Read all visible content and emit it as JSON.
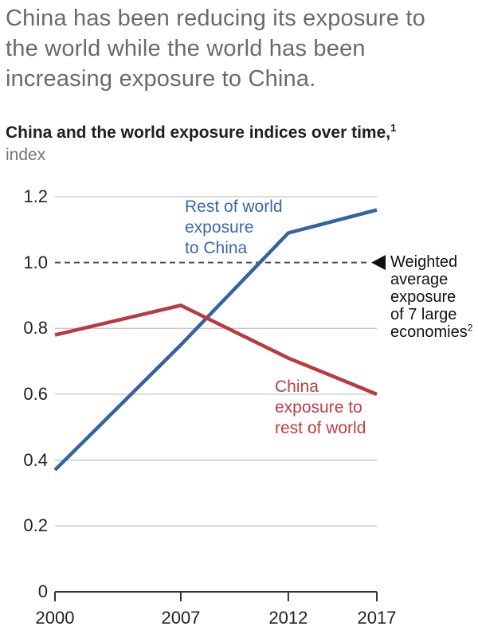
{
  "page_title": {
    "lines": [
      "China has been reducing its exposure to",
      "the world while the world has been",
      "increasing exposure to China."
    ]
  },
  "chart": {
    "title": "China and the world exposure indices over time,",
    "title_footnote": "1",
    "unit": "index"
  },
  "annotations": {
    "rest_of_world": {
      "lines": [
        "Rest of world",
        "exposure",
        "to China"
      ]
    },
    "china_exposure": {
      "lines": [
        "China",
        "exposure to",
        "rest of world"
      ]
    },
    "weighted_avg": {
      "lines": [
        "Weighted",
        "average",
        "exposure",
        "of 7 large",
        "economies"
      ],
      "footnote": "2"
    }
  },
  "colors": {
    "blue_line": "#35639F",
    "red_line": "#B83B40",
    "blue_text": "#3A68A8",
    "red_text": "#BE3E44",
    "gridline": "#c6c6c6",
    "dashed_reference": "#4d4d4d",
    "axis": "#333333",
    "arrow": "#111111"
  },
  "chart_data": {
    "type": "line",
    "title": "China and the world exposure indices over time,¹",
    "ylabel": "index",
    "x": [
      2000,
      2007,
      2012,
      2017
    ],
    "series": [
      {
        "name": "Rest of world exposure to China",
        "color": "#35639F",
        "values": [
          0.37,
          0.75,
          1.09,
          1.16
        ]
      },
      {
        "name": "China exposure to rest of world",
        "color": "#B83B40",
        "values": [
          0.78,
          0.87,
          0.71,
          0.6
        ]
      }
    ],
    "reference_line": {
      "value": 1.0,
      "style": "dashed",
      "label": "Weighted average exposure of 7 large economies²"
    },
    "ylim": [
      0,
      1.2
    ],
    "yticks": [
      0,
      0.2,
      0.4,
      0.6,
      0.8,
      1.0,
      1.2
    ],
    "grid": true,
    "legend_position": "inline-labels"
  }
}
